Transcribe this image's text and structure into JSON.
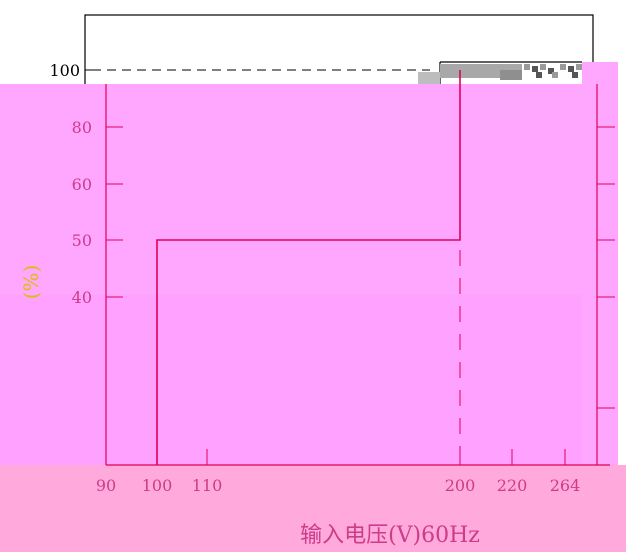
{
  "colors": {
    "background": "#ffffff",
    "frame": "#000000",
    "band_top": "#ffa6ff",
    "band_bottom": "#ffa2ff",
    "band_base": "#ffa9dc",
    "plot_line": "#e0005a",
    "axis_line": "#e0005a",
    "tick_label": "#cc3c8a",
    "ytitle": "#d8c100",
    "dashes": "#000000"
  },
  "chart_data": {
    "type": "line",
    "title": "",
    "xlabel": "输入电压(V)60Hz",
    "ylabel": "(%)",
    "ytick_labels": [
      "100",
      "80",
      "60",
      "50",
      "40"
    ],
    "xtick_labels": [
      "90",
      "100",
      "110",
      "200",
      "220",
      "264"
    ],
    "xlim": [
      90,
      264
    ],
    "ylim": [
      0,
      100
    ],
    "reference_line": {
      "y": 100,
      "style": "dashed"
    },
    "series": [
      {
        "values_x": [
          100,
          100,
          200,
          200
        ],
        "values_y": [
          0,
          50,
          50,
          100
        ]
      }
    ]
  }
}
